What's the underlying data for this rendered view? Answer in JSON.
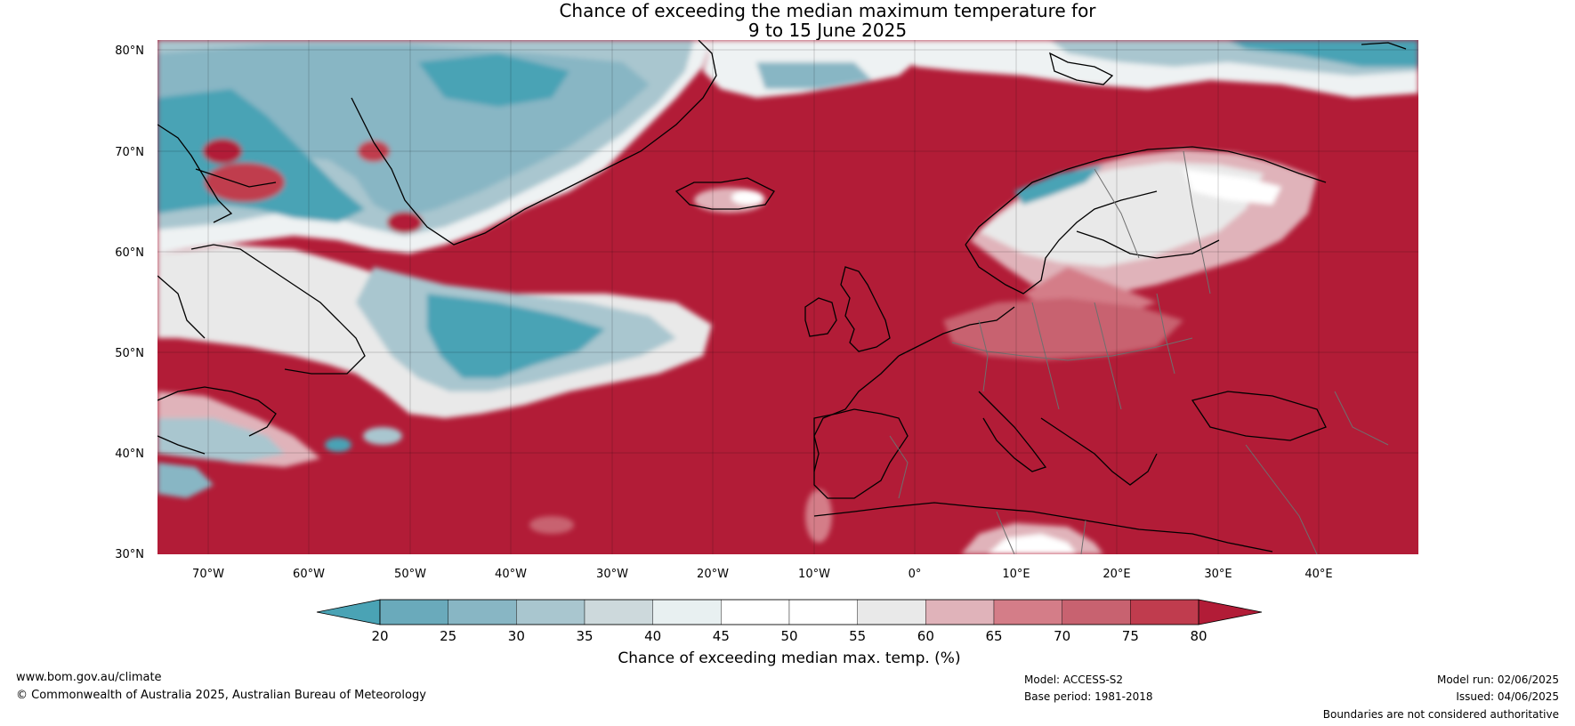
{
  "title": {
    "line1": "Chance of exceeding the median maximum temperature for",
    "line2": "9 to 15 June 2025"
  },
  "map": {
    "lat_ticks": [
      "80°N",
      "70°N",
      "60°N",
      "50°N",
      "40°N",
      "30°N"
    ],
    "lon_ticks": [
      "70°W",
      "60°W",
      "50°W",
      "40°W",
      "30°W",
      "20°W",
      "10°W",
      "0°",
      "10°E",
      "20°E",
      "30°E",
      "40°E"
    ],
    "lat_range": [
      30,
      81
    ],
    "lon_range": [
      -75,
      50
    ]
  },
  "colorbar": {
    "title": "Chance of exceeding median max. temp. (%)",
    "ticks": [
      "20",
      "25",
      "30",
      "35",
      "40",
      "45",
      "50",
      "55",
      "60",
      "65",
      "70",
      "75",
      "80"
    ],
    "colors": [
      "#4aa3b5",
      "#6aaabb",
      "#88b6c4",
      "#a9c6cf",
      "#cdd9dc",
      "#e8f0f1",
      "#ffffff",
      "#ffffff",
      "#e9e9e9",
      "#e0b3ba",
      "#d47d88",
      "#c86270",
      "#c03c4e",
      "#b21c37"
    ]
  },
  "footer": {
    "url": "www.bom.gov.au/climate",
    "copyright": "© Commonwealth of Australia 2025, Australian Bureau of Meteorology",
    "model": "Model: ACCESS-S2",
    "base_period": "Base period: 1981-2018",
    "model_run": "Model run: 02/06/2025",
    "issued": "Issued: 04/06/2025",
    "disclaimer": "Boundaries are not considered authoritative"
  }
}
